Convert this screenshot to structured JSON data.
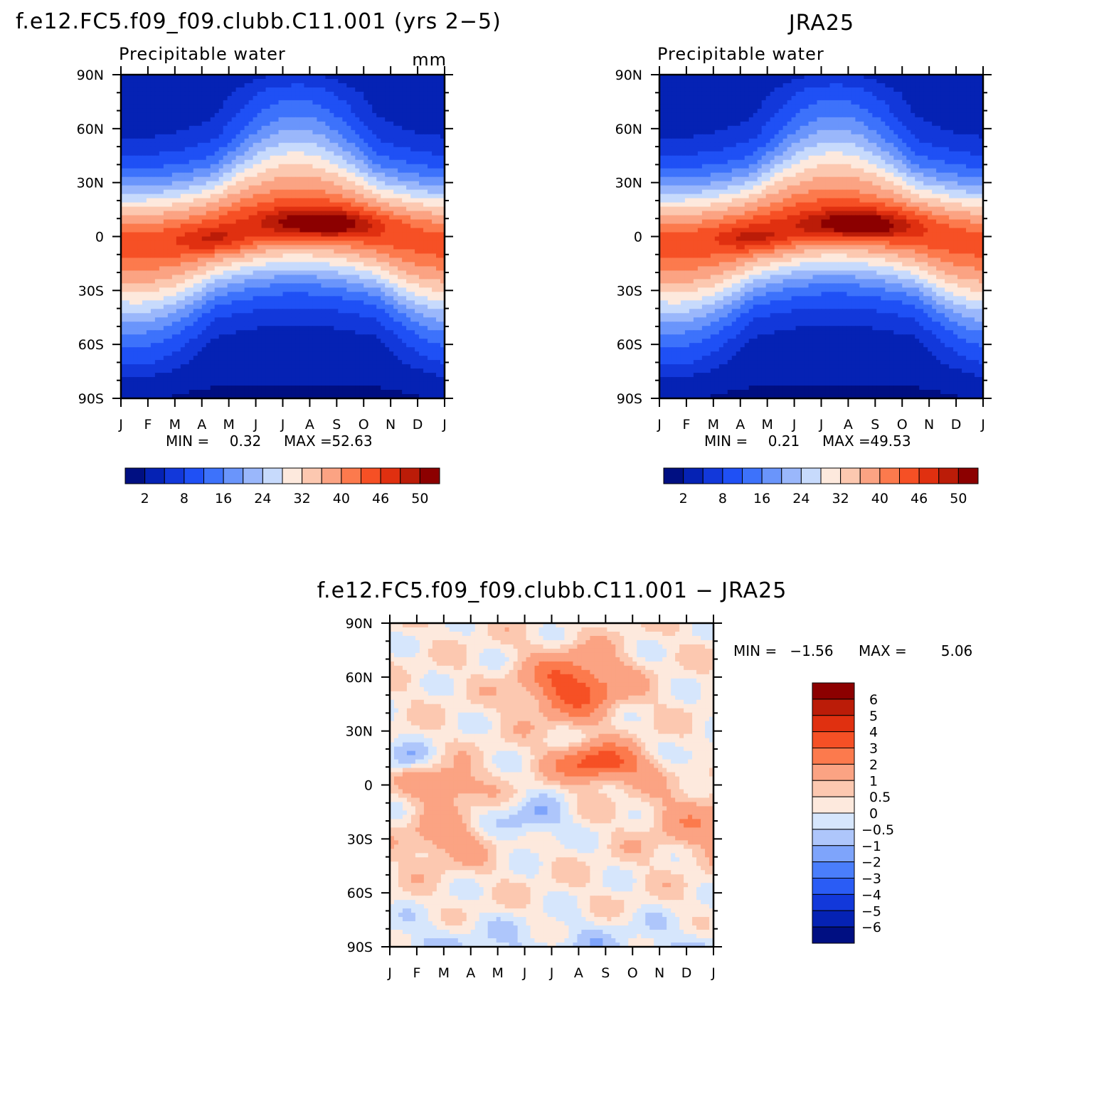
{
  "chart_data": [
    {
      "type": "heatmap",
      "title": "f.e12.FC5.f09_f09.clubb.C11.001 (yrs 2−5)",
      "subtitle": "Precipitable water",
      "units": "mm",
      "x_ticks": [
        "J",
        "F",
        "M",
        "A",
        "M",
        "J",
        "J",
        "A",
        "S",
        "O",
        "N",
        "D",
        "J"
      ],
      "y_ticks": [
        "90N",
        "60N",
        "30N",
        "0",
        "30S",
        "60S",
        "90S"
      ],
      "lat_range": [
        -90,
        90
      ],
      "stats": {
        "min_label": "MIN =",
        "min": "0.32",
        "max_label": "MAX =",
        "max": "52.63"
      },
      "levels": [
        "2",
        "8",
        "16",
        "24",
        "32",
        "40",
        "46",
        "50"
      ],
      "colors": [
        "#000f82",
        "#0522b4",
        "#1238da",
        "#1f50f5",
        "#3d72fb",
        "#6a95fb",
        "#9ab7fb",
        "#c7dafc",
        "#fde9dd",
        "#fcc8b0",
        "#fba383",
        "#fc7a4d",
        "#f65025",
        "#e03010",
        "#bb1c08",
        "#8c0000"
      ],
      "peak_month": [
        7.3,
        3.6
      ],
      "peak_lat": [
        7,
        -3
      ]
    },
    {
      "type": "heatmap",
      "title": "JRA25",
      "subtitle": "Precipitable water",
      "units": "",
      "x_ticks": [
        "J",
        "F",
        "M",
        "A",
        "M",
        "J",
        "J",
        "A",
        "S",
        "O",
        "N",
        "D",
        "J"
      ],
      "y_ticks": [
        "90N",
        "60N",
        "30N",
        "0",
        "30S",
        "60S",
        "90S"
      ],
      "lat_range": [
        -90,
        90
      ],
      "stats": {
        "min_label": "MIN =",
        "min": "0.21",
        "max_label": "MAX =",
        "max": "49.53"
      },
      "levels": [
        "2",
        "8",
        "16",
        "24",
        "32",
        "40",
        "46",
        "50"
      ],
      "colors": [
        "#000f82",
        "#0522b4",
        "#1238da",
        "#1f50f5",
        "#3d72fb",
        "#6a95fb",
        "#9ab7fb",
        "#c7dafc",
        "#fde9dd",
        "#fcc8b0",
        "#fba383",
        "#fc7a4d",
        "#f65025",
        "#e03010",
        "#bb1c08",
        "#8c0000"
      ],
      "peak_month": [
        7.3,
        3.6
      ],
      "peak_lat": [
        6,
        -2
      ]
    },
    {
      "type": "heatmap",
      "title": "f.e12.FC5.f09_f09.clubb.C11.001 − JRA25",
      "subtitle": "",
      "x_ticks": [
        "J",
        "F",
        "M",
        "A",
        "M",
        "J",
        "J",
        "A",
        "S",
        "O",
        "N",
        "D",
        "J"
      ],
      "y_ticks": [
        "90N",
        "60N",
        "30N",
        "0",
        "30S",
        "60S",
        "90S"
      ],
      "lat_range": [
        -90,
        90
      ],
      "stats": {
        "min_label": "MIN =",
        "min": "−1.56",
        "max_label": "MAX =",
        "max": "5.06"
      },
      "levels": [
        "6",
        "5",
        "4",
        "3",
        "2",
        "1",
        "0.5",
        "0",
        "−0.5",
        "−1",
        "−2",
        "−3",
        "−4",
        "−5",
        "−6"
      ],
      "colors": [
        "#8c0000",
        "#bb1c08",
        "#e03010",
        "#f65025",
        "#fc7a4d",
        "#fba383",
        "#fcc8b0",
        "#fde9dd",
        "#d6e6fc",
        "#aec6fb",
        "#7ea4fb",
        "#4a7efb",
        "#2a5cf5",
        "#1238da",
        "#0522b4",
        "#000f82"
      ]
    }
  ]
}
